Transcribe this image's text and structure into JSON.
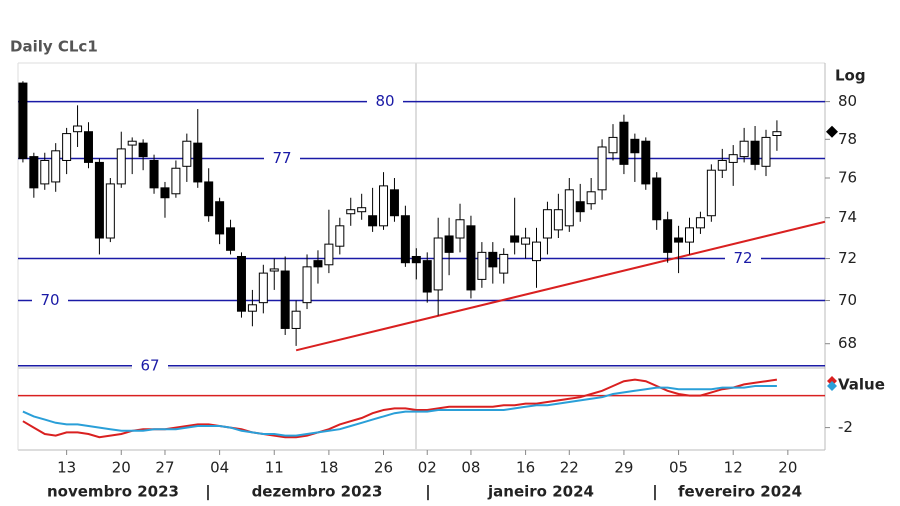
{
  "chart_data": {
    "type": "candlestick",
    "title": "Daily CLc1",
    "scale_label": "Log",
    "log_scale": true,
    "categories": [
      "2023-11-07",
      "2023-11-08",
      "2023-11-09",
      "2023-11-10",
      "2023-11-13",
      "2023-11-14",
      "2023-11-15",
      "2023-11-16",
      "2023-11-17",
      "2023-11-20",
      "2023-11-21",
      "2023-11-22",
      "2023-11-24",
      "2023-11-27",
      "2023-11-28",
      "2023-11-29",
      "2023-11-30",
      "2023-12-01",
      "2023-12-04",
      "2023-12-05",
      "2023-12-06",
      "2023-12-07",
      "2023-12-08",
      "2023-12-11",
      "2023-12-12",
      "2023-12-13",
      "2023-12-14",
      "2023-12-15",
      "2023-12-18",
      "2023-12-19",
      "2023-12-20",
      "2023-12-21",
      "2023-12-22",
      "2023-12-26",
      "2023-12-27",
      "2023-12-28",
      "2023-12-29",
      "2024-01-02",
      "2024-01-03",
      "2024-01-04",
      "2024-01-05",
      "2024-01-08",
      "2024-01-09",
      "2024-01-10",
      "2024-01-11",
      "2024-01-12",
      "2024-01-16",
      "2024-01-17",
      "2024-01-18",
      "2024-01-19",
      "2024-01-22",
      "2024-01-23",
      "2024-01-24",
      "2024-01-25",
      "2024-01-26",
      "2024-01-29",
      "2024-01-30",
      "2024-01-31",
      "2024-02-01",
      "2024-02-02",
      "2024-02-05",
      "2024-02-06",
      "2024-02-07",
      "2024-02-08",
      "2024-02-09",
      "2024-02-12",
      "2024-02-13",
      "2024-02-14",
      "2024-02-15",
      "2024-02-16"
    ],
    "open": [
      81.0,
      77.1,
      75.7,
      75.8,
      76.9,
      78.4,
      78.4,
      76.8,
      73.0,
      75.7,
      77.7,
      77.8,
      76.9,
      75.5,
      75.2,
      76.6,
      77.8,
      75.8,
      74.8,
      73.5,
      72.1,
      69.5,
      69.9,
      71.4,
      71.4,
      68.7,
      69.9,
      71.9,
      71.7,
      72.6,
      74.2,
      74.3,
      74.1,
      73.6,
      75.4,
      74.1,
      72.1,
      71.9,
      70.5,
      73.1,
      73.0,
      73.6,
      71.0,
      72.3,
      71.3,
      73.1,
      72.7,
      71.9,
      73.0,
      73.4,
      73.6,
      74.8,
      74.7,
      75.4,
      77.3,
      78.9,
      78.0,
      77.9,
      76.0,
      73.9,
      73.0,
      72.8,
      73.5,
      74.1,
      76.4,
      76.8,
      77.1,
      77.9,
      76.6,
      78.2
    ],
    "high": [
      81.1,
      77.3,
      77.3,
      77.8,
      78.6,
      79.8,
      78.9,
      77.0,
      76.0,
      78.4,
      78.1,
      78.0,
      77.2,
      75.8,
      76.9,
      78.3,
      79.6,
      76.5,
      75.0,
      73.9,
      72.3,
      70.5,
      71.7,
      72.0,
      72.1,
      70.0,
      72.2,
      72.4,
      74.4,
      74.0,
      75.0,
      75.2,
      75.5,
      76.3,
      76.0,
      74.6,
      72.5,
      72.3,
      74.0,
      74.0,
      74.7,
      74.1,
      72.8,
      72.8,
      72.5,
      75.0,
      73.5,
      73.5,
      74.8,
      75.2,
      76.0,
      75.7,
      76.0,
      78.0,
      78.8,
      79.3,
      78.3,
      78.1,
      76.3,
      74.3,
      73.6,
      74.0,
      74.3,
      76.7,
      77.5,
      77.7,
      78.6,
      78.7,
      78.5,
      79.0
    ],
    "low": [
      76.8,
      75.0,
      75.4,
      75.3,
      76.2,
      77.6,
      76.5,
      72.2,
      72.8,
      75.5,
      76.2,
      76.4,
      75.2,
      74.0,
      75.0,
      75.8,
      75.5,
      73.8,
      72.7,
      72.2,
      69.2,
      68.8,
      69.4,
      70.5,
      68.4,
      67.9,
      69.6,
      70.8,
      71.3,
      72.2,
      73.6,
      73.9,
      73.3,
      73.4,
      73.8,
      71.6,
      71.0,
      69.9,
      69.3,
      71.2,
      72.3,
      70.1,
      70.6,
      70.8,
      70.8,
      72.2,
      72.0,
      70.6,
      72.2,
      73.0,
      73.3,
      73.8,
      74.4,
      74.9,
      76.9,
      76.2,
      75.8,
      75.4,
      73.4,
      71.8,
      71.3,
      72.2,
      73.2,
      73.8,
      76.0,
      75.6,
      76.8,
      76.4,
      76.1,
      77.4
    ],
    "close": [
      77.0,
      75.5,
      76.9,
      77.4,
      78.3,
      78.7,
      76.8,
      73.0,
      75.7,
      77.5,
      77.9,
      77.1,
      75.5,
      75.0,
      76.5,
      77.9,
      75.8,
      74.1,
      73.2,
      72.4,
      69.5,
      69.8,
      71.3,
      71.5,
      68.7,
      69.5,
      71.6,
      71.6,
      72.7,
      73.6,
      74.4,
      74.5,
      73.6,
      75.6,
      74.1,
      71.8,
      71.8,
      70.4,
      73.0,
      72.3,
      73.9,
      70.5,
      72.3,
      71.6,
      72.2,
      72.8,
      73.0,
      72.8,
      74.4,
      74.4,
      75.4,
      74.3,
      75.3,
      77.6,
      78.1,
      76.7,
      77.3,
      75.7,
      73.9,
      72.3,
      72.8,
      73.5,
      74.0,
      76.4,
      76.9,
      77.2,
      77.9,
      76.7,
      78.1,
      78.4
    ],
    "up_color": "#ffffff",
    "down_color": "#000000",
    "ylim": [
      66.9,
      82.1
    ],
    "yticks": [
      68,
      70,
      72,
      74,
      76,
      78,
      80
    ],
    "xlim": [
      -0.45,
      73.4
    ],
    "xticks": [
      {
        "value": 4,
        "label": "13"
      },
      {
        "value": 9,
        "label": "20"
      },
      {
        "value": 13,
        "label": "27"
      },
      {
        "value": 18,
        "label": "04"
      },
      {
        "value": 23,
        "label": "11"
      },
      {
        "value": 28,
        "label": "18"
      },
      {
        "value": 33,
        "label": "26"
      },
      {
        "value": 37,
        "label": "02"
      },
      {
        "value": 41,
        "label": "08"
      },
      {
        "value": 46,
        "label": "16"
      },
      {
        "value": 50,
        "label": "22"
      },
      {
        "value": 55,
        "label": "29"
      },
      {
        "value": 60,
        "label": "05"
      },
      {
        "value": 65,
        "label": "12"
      },
      {
        "value": 70,
        "label": "20"
      }
    ],
    "month_labels": [
      "novembro 2023",
      "dezembro 2023",
      "janeiro 2024",
      "fevereiro 2024"
    ],
    "levels": {
      "values": [
        80,
        77,
        72,
        70,
        67
      ],
      "color": "#1a1aa6"
    },
    "trendline": {
      "x": [
        25,
        73.4
      ],
      "values": [
        67.7,
        73.8
      ],
      "color": "#d92020"
    },
    "indicator": {
      "type": "line",
      "legend": "Value",
      "ylim": [
        -3.4,
        1.6
      ],
      "yticks": [
        -2
      ],
      "hline": {
        "value": 0,
        "color": "#d92020"
      },
      "series": [
        {
          "color": "#d92020",
          "values": [
            -1.6,
            -2.0,
            -2.4,
            -2.5,
            -2.3,
            -2.3,
            -2.4,
            -2.6,
            -2.5,
            -2.4,
            -2.2,
            -2.1,
            -2.1,
            -2.1,
            -2.0,
            -1.9,
            -1.8,
            -1.8,
            -1.9,
            -2.0,
            -2.1,
            -2.3,
            -2.4,
            -2.5,
            -2.6,
            -2.6,
            -2.5,
            -2.3,
            -2.1,
            -1.8,
            -1.6,
            -1.4,
            -1.1,
            -0.9,
            -0.8,
            -0.8,
            -0.9,
            -0.9,
            -0.8,
            -0.7,
            -0.7,
            -0.7,
            -0.7,
            -0.7,
            -0.6,
            -0.6,
            -0.5,
            -0.5,
            -0.4,
            -0.3,
            -0.2,
            -0.1,
            0.1,
            0.3,
            0.6,
            0.9,
            1.0,
            0.9,
            0.6,
            0.3,
            0.1,
            0.0,
            0.0,
            0.2,
            0.4,
            0.5,
            0.7,
            0.8,
            0.9,
            1.0
          ]
        },
        {
          "color": "#2a9fd8",
          "values": [
            -1.0,
            -1.3,
            -1.5,
            -1.7,
            -1.8,
            -1.8,
            -1.9,
            -2.0,
            -2.1,
            -2.2,
            -2.2,
            -2.2,
            -2.1,
            -2.1,
            -2.1,
            -2.0,
            -1.9,
            -1.9,
            -1.9,
            -2.0,
            -2.2,
            -2.3,
            -2.4,
            -2.4,
            -2.5,
            -2.5,
            -2.4,
            -2.3,
            -2.2,
            -2.1,
            -1.9,
            -1.7,
            -1.5,
            -1.3,
            -1.1,
            -1.0,
            -1.0,
            -1.0,
            -0.9,
            -0.9,
            -0.9,
            -0.9,
            -0.9,
            -0.9,
            -0.9,
            -0.8,
            -0.7,
            -0.6,
            -0.6,
            -0.5,
            -0.4,
            -0.3,
            -0.2,
            -0.1,
            0.1,
            0.2,
            0.3,
            0.4,
            0.5,
            0.5,
            0.4,
            0.4,
            0.4,
            0.4,
            0.5,
            0.5,
            0.5,
            0.6,
            0.6,
            0.6
          ]
        }
      ]
    }
  }
}
